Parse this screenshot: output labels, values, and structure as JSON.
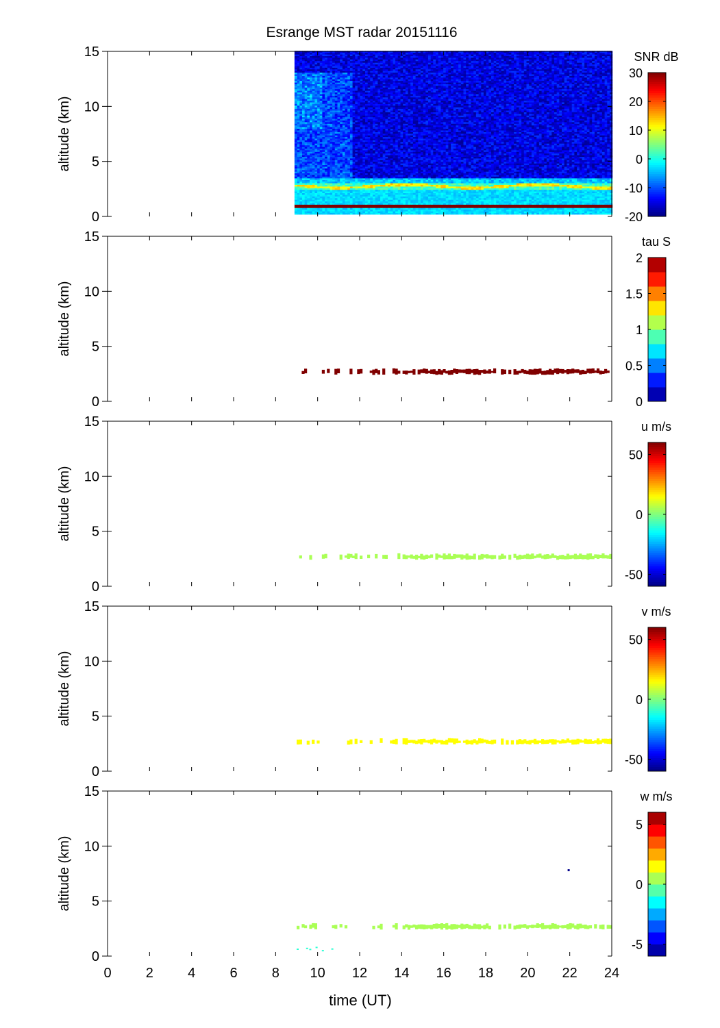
{
  "chart_data": {
    "title": "Esrange MST radar 20151116",
    "type": "heatmap",
    "xlabel": "time (UT)",
    "xlim": [
      0,
      24
    ],
    "xticks": [
      0,
      2,
      4,
      6,
      8,
      10,
      12,
      14,
      16,
      18,
      20,
      22,
      24
    ],
    "xtick_labels": [
      "0",
      "2",
      "4",
      "6",
      "8",
      "10",
      "12",
      "14",
      "16",
      "18",
      "20",
      "22",
      "24"
    ],
    "panels": [
      {
        "id": "snr",
        "ylabel": "altitude (km)",
        "ylim": [
          0,
          15
        ],
        "yticks": [
          0,
          5,
          10,
          15
        ],
        "ytick_labels": [
          "0",
          "5",
          "10",
          "15"
        ],
        "colorbar_label": "SNR dB",
        "clim": [
          -20,
          30
        ],
        "cticks": [
          -20,
          -10,
          0,
          10,
          20,
          30
        ],
        "ctick_labels": [
          "-20",
          "-10",
          "0",
          "10",
          "20",
          "30"
        ],
        "data_time_range": [
          8.9,
          24
        ],
        "features": [
          {
            "desc": "noise floor",
            "alt_range": [
              3.5,
              15
            ],
            "value": -15
          },
          {
            "desc": "enhanced layer",
            "alt_range": [
              2.4,
              3.0
            ],
            "value": 8
          },
          {
            "desc": "near ground",
            "alt_range": [
              0.2,
              2.4
            ],
            "value": -3
          },
          {
            "desc": "strong echo",
            "alt_range": [
              0.8,
              1.0
            ],
            "value": 30
          }
        ]
      },
      {
        "id": "tau",
        "ylabel": "altitude (km)",
        "ylim": [
          0,
          15
        ],
        "yticks": [
          0,
          5,
          10,
          15
        ],
        "ytick_labels": [
          "0",
          "5",
          "10",
          "15"
        ],
        "colorbar_label": "tau S",
        "clim": [
          0,
          2
        ],
        "cticks": [
          0,
          0.5,
          1,
          1.5,
          2
        ],
        "ctick_labels": [
          "0",
          "0.5",
          "1",
          "1.5",
          "2"
        ],
        "colorbar_levels": 10,
        "layer": {
          "alt_range": [
            2.4,
            3.0
          ],
          "value": 2.0
        }
      },
      {
        "id": "u",
        "ylabel": "altitude (km)",
        "ylim": [
          0,
          15
        ],
        "yticks": [
          0,
          5,
          10,
          15
        ],
        "ytick_labels": [
          "0",
          "5",
          "10",
          "15"
        ],
        "colorbar_label": "u m/s",
        "clim": [
          -60,
          60
        ],
        "cticks": [
          -50,
          0,
          50
        ],
        "ctick_labels": [
          "-50",
          "0",
          "50"
        ],
        "layer": {
          "alt_range": [
            2.4,
            3.0
          ],
          "value": 5
        }
      },
      {
        "id": "v",
        "ylabel": "altitude (km)",
        "ylim": [
          0,
          15
        ],
        "yticks": [
          0,
          5,
          10,
          15
        ],
        "ytick_labels": [
          "0",
          "5",
          "10",
          "15"
        ],
        "colorbar_label": "v m/s",
        "clim": [
          -60,
          60
        ],
        "cticks": [
          -50,
          0,
          50
        ],
        "ctick_labels": [
          "-50",
          "0",
          "50"
        ],
        "layer": {
          "alt_range": [
            2.4,
            3.0
          ],
          "value": 15
        }
      },
      {
        "id": "w",
        "ylabel": "altitude (km)",
        "ylim": [
          0,
          15
        ],
        "yticks": [
          0,
          5,
          10,
          15
        ],
        "ytick_labels": [
          "0",
          "5",
          "10",
          "15"
        ],
        "colorbar_label": "w m/s",
        "clim": [
          -6,
          6
        ],
        "cticks": [
          -5,
          0,
          5
        ],
        "ctick_labels": [
          "-5",
          "0",
          "5"
        ],
        "colorbar_levels": 12,
        "layer": {
          "alt_range": [
            2.4,
            3.0
          ],
          "value": 0.5
        }
      }
    ]
  }
}
